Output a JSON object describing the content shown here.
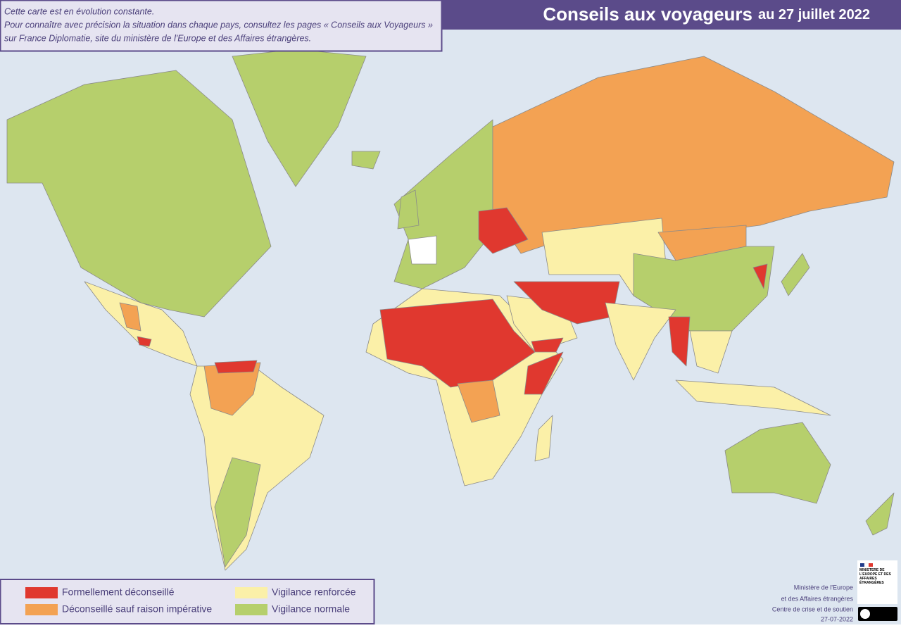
{
  "header": {
    "title": "Conseils aux voyageurs",
    "date": "au 27 juillet 2022"
  },
  "note": [
    "Cette carte est en évolution constante.",
    "Pour connaître avec précision la situation dans chaque pays, consultez les pages « Conseils aux Voyageurs »",
    "sur France Diplomatie, site du ministère de l'Europe et des Affaires étrangères."
  ],
  "legend": [
    {
      "label": "Formellement déconseillé",
      "color": "#e0382f"
    },
    {
      "label": "Déconseillé sauf raison impérative",
      "color": "#f3a253"
    },
    {
      "label": "Vigilance renforcée",
      "color": "#fbf0a8"
    },
    {
      "label": "Vigilance normale",
      "color": "#b6cf6c"
    }
  ],
  "logo": "MINISTÈRE DE L'EUROPE ET DES AFFAIRES ÉTRANGÈRES",
  "credits": [
    "Ministère de l'Europe",
    "et des Affaires étrangères",
    "Centre de crise et de soutien",
    "27-07-2022"
  ]
}
